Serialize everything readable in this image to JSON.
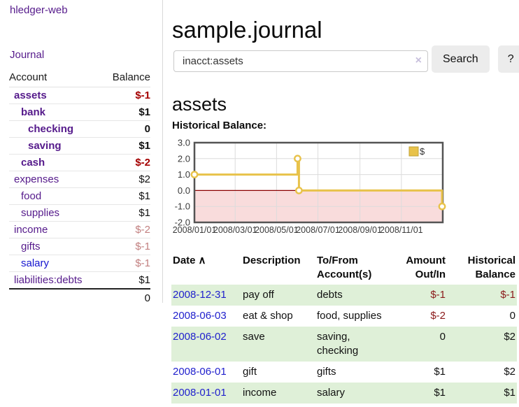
{
  "app": {
    "brand": "hledger-web",
    "nav_journal": "Journal"
  },
  "header": {
    "title": "sample.journal"
  },
  "search": {
    "value": "inacct:assets",
    "clear_icon": "×",
    "button": "Search",
    "help_button": "?"
  },
  "account_page": {
    "heading": "assets",
    "chart_label": "Historical Balance:"
  },
  "sidebar": {
    "table": {
      "account_header": "Account",
      "balance_header": "Balance"
    },
    "accounts": [
      {
        "name": "assets",
        "level": 1,
        "bold": true,
        "balance": "$-1"
      },
      {
        "name": "bank",
        "level": 2,
        "bold": true,
        "balance": "$1"
      },
      {
        "name": "checking",
        "level": 3,
        "bold": true,
        "balance": "0"
      },
      {
        "name": "saving",
        "level": 3,
        "bold": true,
        "balance": "$1"
      },
      {
        "name": "cash",
        "level": 2,
        "bold": true,
        "balance": "$-2"
      },
      {
        "name": "expenses",
        "level": 1,
        "bold": false,
        "balance": "$2"
      },
      {
        "name": "food",
        "level": 2,
        "bold": false,
        "balance": "$1"
      },
      {
        "name": "supplies",
        "level": 2,
        "bold": false,
        "balance": "$1"
      },
      {
        "name": "income",
        "level": 1,
        "bold": false,
        "balance": "$-2"
      },
      {
        "name": "gifts",
        "level": 2,
        "bold": false,
        "balance": "$-1"
      },
      {
        "name": "salary",
        "level": 2,
        "bold": false,
        "balance": "$-1",
        "link_color": "blue"
      },
      {
        "name": "liabilities:debts",
        "level": 1,
        "bold": false,
        "balance": "$1"
      }
    ],
    "total": "0"
  },
  "chart_data": {
    "type": "line",
    "step": true,
    "series": [
      {
        "name": "$",
        "color": "#e8c24a",
        "points": [
          {
            "date": "2008-01-01",
            "value": 1
          },
          {
            "date": "2008-06-01",
            "value": 2
          },
          {
            "date": "2008-06-03",
            "value": 0
          },
          {
            "date": "2008-12-31",
            "value": -1
          }
        ]
      }
    ],
    "x_range": [
      "2008-01-01",
      "2009-01-01"
    ],
    "x_ticks": [
      "2008/01/01",
      "2008/03/01",
      "2008/05/01",
      "2008/07/01",
      "2008/09/01",
      "2008/11/01"
    ],
    "y_ticks": [
      3,
      2,
      1,
      0,
      -1,
      -2
    ],
    "ylim": [
      -2,
      3
    ],
    "legend": {
      "label": "$",
      "position": "top-right"
    },
    "grid": true,
    "negative_region_color": "#f9dcdc",
    "zero_line_color": "#8b0000",
    "border_color": "#545454",
    "grid_color": "#dcdcdc"
  },
  "register": {
    "headers": {
      "date": "Date",
      "sort_indicator": "∧",
      "description": "Description",
      "accounts": "To/From Account(s)",
      "amount": "Amount Out/In",
      "balance": "Historical Balance"
    },
    "rows": [
      {
        "date": "2008-12-31",
        "description": "pay off",
        "accounts": "debts",
        "amount": "$-1",
        "balance": "$-1"
      },
      {
        "date": "2008-06-03",
        "description": "eat & shop",
        "accounts": "food, supplies",
        "amount": "$-2",
        "balance": "0"
      },
      {
        "date": "2008-06-02",
        "description": "save",
        "accounts": "saving, checking",
        "amount": "0",
        "balance": "$2"
      },
      {
        "date": "2008-06-01",
        "description": "gift",
        "accounts": "gifts",
        "amount": "$1",
        "balance": "$2"
      },
      {
        "date": "2008-01-01",
        "description": "income",
        "accounts": "salary",
        "amount": "$1",
        "balance": "$1"
      }
    ]
  },
  "colors": {
    "link_purple": "#551a8b",
    "link_blue": "#1515cf",
    "date_link_blue": "#2121cd",
    "negative_strong": "#a40000",
    "negative_register": "#8b1a1a",
    "negative_faded": "#c28080",
    "row_stripe_green": "#dff0d8",
    "chart_gold": "#e8c24a",
    "chart_negative_bg": "#f9dcdc",
    "chart_zero_line": "#8b0000",
    "button_gray": "#ececec"
  }
}
